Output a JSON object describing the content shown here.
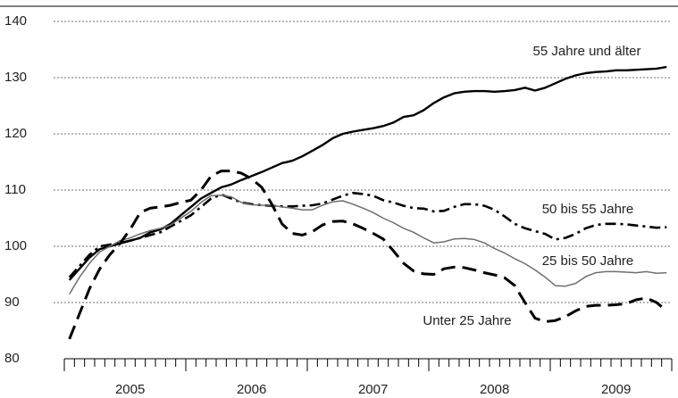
{
  "chart_data": {
    "type": "line",
    "categories": [
      null,
      null,
      null,
      null,
      null,
      null,
      "2005",
      null,
      null,
      null,
      null,
      null,
      null,
      null,
      null,
      null,
      null,
      null,
      "2006",
      null,
      null,
      null,
      null,
      null,
      null,
      null,
      null,
      null,
      null,
      null,
      "2007",
      null,
      null,
      null,
      null,
      null,
      null,
      null,
      null,
      null,
      null,
      null,
      "2008",
      null,
      null,
      null,
      null,
      null,
      null,
      null,
      null,
      null,
      null,
      null,
      "2009",
      null,
      null,
      null,
      null,
      null
    ],
    "series": [
      {
        "name": "55 Jahre und älter",
        "color": "#000000",
        "dash": "solid",
        "values": [
          94,
          96,
          98,
          99.5,
          100,
          100.5,
          101,
          101.5,
          102.5,
          103,
          104,
          105.5,
          107,
          108.5,
          109.5,
          110.5,
          111,
          111.8,
          112.5,
          113.2,
          114,
          114.8,
          115.2,
          116,
          117,
          118,
          119.2,
          120,
          120.4,
          120.7,
          121,
          121.4,
          122,
          123,
          123.3,
          124.2,
          125.5,
          126.5,
          127.2,
          127.5,
          127.6,
          127.6,
          127.5,
          127.6,
          127.8,
          128.2,
          127.7,
          128.2,
          129,
          129.8,
          130.4,
          130.8,
          131,
          131.1,
          131.3,
          131.3,
          131.4,
          131.5,
          131.6,
          131.9
        ]
      },
      {
        "name": "50 bis 55 Jahre",
        "color": "#000000",
        "dash": "dashdot",
        "values": [
          94.5,
          96.5,
          98.5,
          100,
          100.3,
          100.6,
          101,
          101.5,
          102,
          102.5,
          103.5,
          104.5,
          105.5,
          107,
          108.5,
          109.2,
          108.5,
          107.8,
          107.5,
          107.3,
          107.2,
          107.1,
          107.1,
          107.2,
          107.3,
          107.6,
          108.3,
          109,
          109.5,
          109.3,
          109,
          108.2,
          107.8,
          107.2,
          106.8,
          106.7,
          106.2,
          106.3,
          107,
          107.5,
          107.5,
          107.2,
          106.5,
          105.3,
          104,
          103.2,
          102.7,
          102.2,
          101.2,
          101.5,
          102.2,
          103.2,
          103.8,
          104,
          104,
          103.9,
          103.7,
          103.5,
          103.3,
          103.4
        ]
      },
      {
        "name": "25 bis 50 Jahre",
        "color": "#6e6e6e",
        "dash": "solid",
        "values": [
          91.5,
          94.5,
          97,
          99,
          100,
          101,
          101.5,
          102.2,
          102.8,
          103.2,
          103.8,
          105,
          106.2,
          107.8,
          109,
          109.1,
          108.8,
          107.8,
          107.4,
          107.3,
          107.3,
          107,
          106.8,
          106.5,
          106.5,
          107.3,
          107.9,
          108.1,
          107.5,
          106.8,
          106,
          105,
          104.2,
          103.2,
          102.5,
          101.5,
          100.6,
          100.8,
          101.3,
          101.4,
          101.2,
          100.6,
          99.6,
          98.8,
          97.8,
          96.9,
          95.8,
          94.5,
          93,
          92.9,
          93.4,
          94.6,
          95.3,
          95.5,
          95.5,
          95.4,
          95.3,
          95.5,
          95.2,
          95.3
        ]
      },
      {
        "name": "Unter 25 Jahre",
        "color": "#000000",
        "dash": "dash",
        "values": [
          83.5,
          88,
          92.5,
          96,
          98.5,
          100.5,
          103,
          106,
          106.8,
          107,
          107.3,
          107.8,
          108.2,
          110,
          112.5,
          113.4,
          113.4,
          113,
          112,
          110.5,
          107.5,
          104,
          102.3,
          102,
          102.6,
          103.8,
          104.4,
          104.5,
          104,
          103.2,
          102.3,
          101.3,
          99.2,
          97,
          95.6,
          95.1,
          95,
          96,
          96.3,
          96.2,
          95.8,
          95.3,
          94.9,
          94.4,
          93,
          90,
          87.2,
          86.6,
          86.8,
          87.5,
          88.5,
          89.3,
          89.5,
          89.5,
          89.6,
          89.8,
          90.5,
          90.8,
          90,
          88.5
        ]
      }
    ],
    "ylim": [
      80,
      140
    ],
    "yticks": [
      80,
      90,
      100,
      110,
      120,
      130,
      140
    ],
    "grid": true
  }
}
